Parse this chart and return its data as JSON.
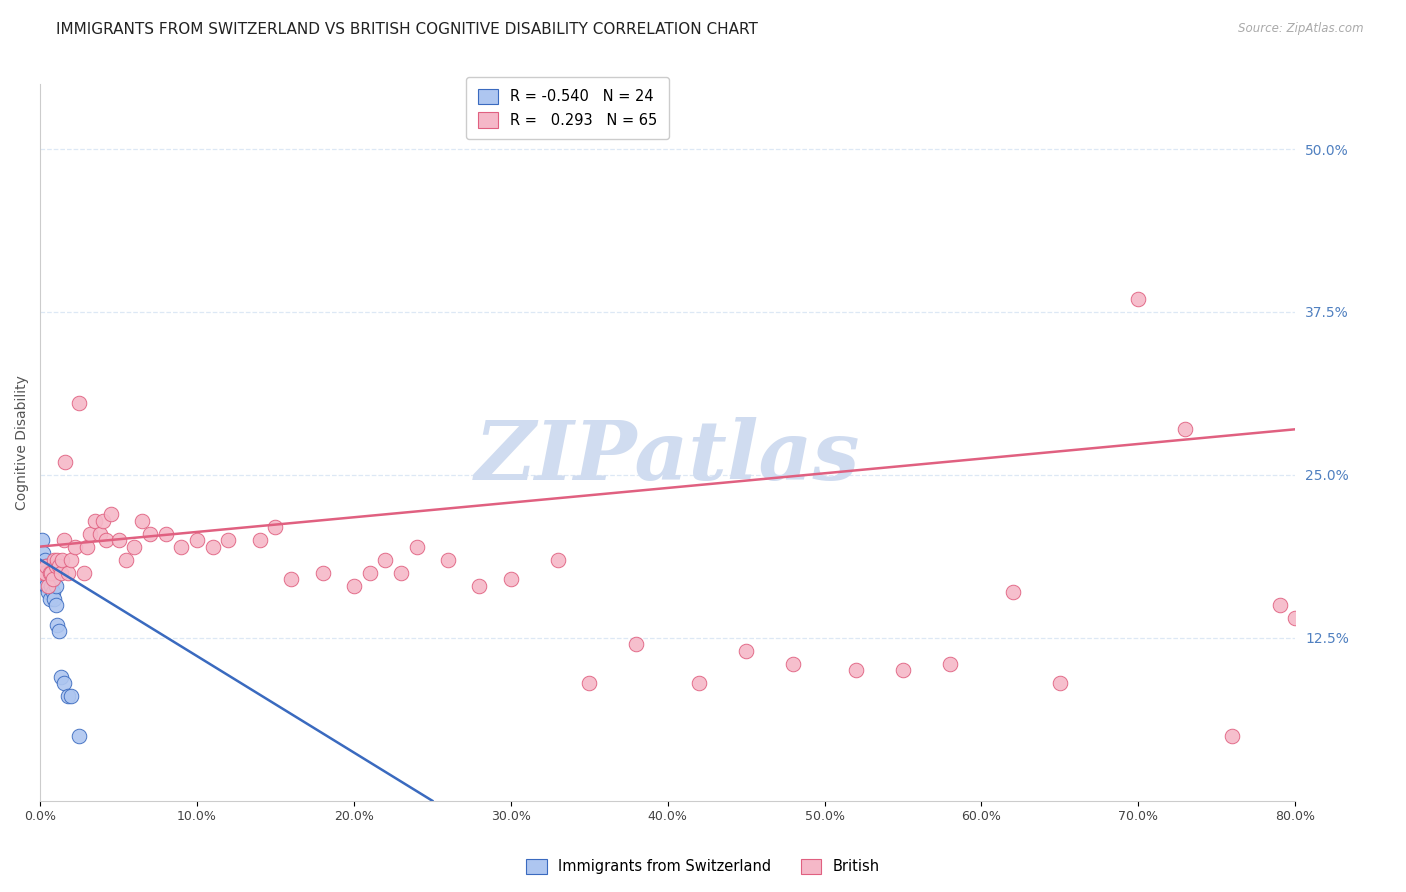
{
  "title": "IMMIGRANTS FROM SWITZERLAND VS BRITISH COGNITIVE DISABILITY CORRELATION CHART",
  "source": "Source: ZipAtlas.com",
  "ylabel": "Cognitive Disability",
  "right_ytick_labels": [
    "50.0%",
    "37.5%",
    "25.0%",
    "12.5%"
  ],
  "right_ytick_values": [
    0.5,
    0.375,
    0.25,
    0.125
  ],
  "xlim": [
    0.0,
    0.8
  ],
  "ylim": [
    0.0,
    0.55
  ],
  "blue_R": -0.54,
  "blue_N": 24,
  "pink_R": 0.293,
  "pink_N": 65,
  "blue_color": "#aec6f0",
  "pink_color": "#f5b8c8",
  "blue_line_color": "#3a6abf",
  "pink_line_color": "#e06080",
  "blue_scatter_x": [
    0.001,
    0.002,
    0.002,
    0.003,
    0.003,
    0.004,
    0.004,
    0.005,
    0.005,
    0.006,
    0.006,
    0.007,
    0.007,
    0.008,
    0.009,
    0.01,
    0.01,
    0.011,
    0.012,
    0.013,
    0.015,
    0.018,
    0.02,
    0.025
  ],
  "blue_scatter_y": [
    0.2,
    0.19,
    0.175,
    0.185,
    0.17,
    0.18,
    0.165,
    0.175,
    0.16,
    0.175,
    0.155,
    0.175,
    0.165,
    0.16,
    0.155,
    0.165,
    0.15,
    0.135,
    0.13,
    0.095,
    0.09,
    0.08,
    0.08,
    0.05
  ],
  "pink_scatter_x": [
    0.002,
    0.003,
    0.004,
    0.005,
    0.006,
    0.007,
    0.008,
    0.009,
    0.01,
    0.011,
    0.012,
    0.013,
    0.014,
    0.015,
    0.016,
    0.018,
    0.02,
    0.022,
    0.025,
    0.028,
    0.03,
    0.032,
    0.035,
    0.038,
    0.04,
    0.042,
    0.045,
    0.05,
    0.055,
    0.06,
    0.065,
    0.07,
    0.08,
    0.09,
    0.1,
    0.11,
    0.12,
    0.14,
    0.15,
    0.16,
    0.18,
    0.2,
    0.21,
    0.22,
    0.23,
    0.24,
    0.26,
    0.28,
    0.3,
    0.33,
    0.35,
    0.38,
    0.42,
    0.45,
    0.48,
    0.52,
    0.55,
    0.58,
    0.62,
    0.65,
    0.7,
    0.73,
    0.76,
    0.79,
    0.8
  ],
  "pink_scatter_y": [
    0.175,
    0.175,
    0.18,
    0.165,
    0.175,
    0.175,
    0.17,
    0.185,
    0.18,
    0.185,
    0.18,
    0.175,
    0.185,
    0.2,
    0.26,
    0.175,
    0.185,
    0.195,
    0.305,
    0.175,
    0.195,
    0.205,
    0.215,
    0.205,
    0.215,
    0.2,
    0.22,
    0.2,
    0.185,
    0.195,
    0.215,
    0.205,
    0.205,
    0.195,
    0.2,
    0.195,
    0.2,
    0.2,
    0.21,
    0.17,
    0.175,
    0.165,
    0.175,
    0.185,
    0.175,
    0.195,
    0.185,
    0.165,
    0.17,
    0.185,
    0.09,
    0.12,
    0.09,
    0.115,
    0.105,
    0.1,
    0.1,
    0.105,
    0.16,
    0.09,
    0.385,
    0.285,
    0.05,
    0.15,
    0.14
  ],
  "watermark": "ZIPatlas",
  "watermark_color": "#d0dcf0",
  "legend_blue_label": "Immigrants from Switzerland",
  "legend_pink_label": "British",
  "grid_color": "#dde8f5",
  "title_fontsize": 11,
  "axis_label_fontsize": 10,
  "tick_fontsize": 9,
  "right_tick_color": "#5080c0",
  "pink_line_x0": 0.0,
  "pink_line_y0": 0.195,
  "pink_line_x1": 0.8,
  "pink_line_y1": 0.285,
  "blue_line_x0": 0.0,
  "blue_line_y0": 0.185,
  "blue_line_x1": 0.25,
  "blue_line_y1": 0.0
}
